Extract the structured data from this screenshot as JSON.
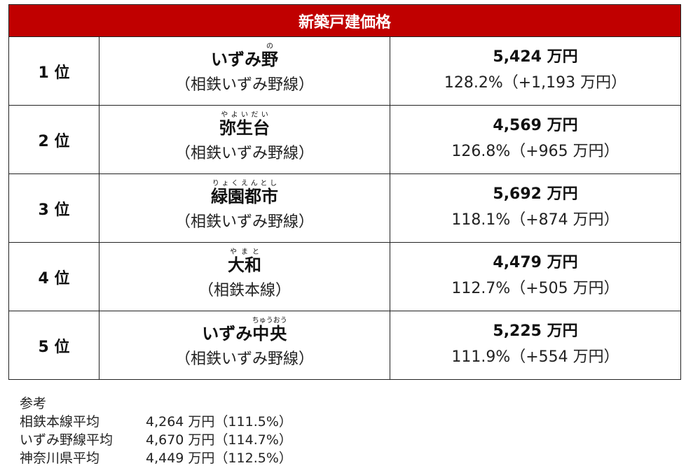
{
  "header_color": "#c00000",
  "title": "新築戸建価格",
  "rows": [
    {
      "rank": "1 位",
      "name_pre": "いずみ",
      "name_ruby_base": "野",
      "name_ruby": "の",
      "name_post": "",
      "line": "（相鉄いずみ野線）",
      "price": "5,424 万円",
      "change": "128.2%（+1,193 万円）"
    },
    {
      "rank": "2 位",
      "name_pre": "",
      "name_ruby_base": "弥生台",
      "name_ruby": "やよいだい",
      "name_post": "",
      "line": "（相鉄いずみ野線）",
      "price": "4,569 万円",
      "change": "126.8%（+965 万円）"
    },
    {
      "rank": "3 位",
      "name_pre": "",
      "name_ruby_base": "緑園都市",
      "name_ruby": "りょくえんとし",
      "name_post": "",
      "line": "（相鉄いずみ野線）",
      "price": "5,692 万円",
      "change": "118.1%（+874 万円）"
    },
    {
      "rank": "4 位",
      "name_pre": "",
      "name_ruby_base": "大和",
      "name_ruby": "やまと",
      "name_post": "",
      "line": "（相鉄本線）",
      "price": "4,479 万円",
      "change": "112.7%（+505 万円）"
    },
    {
      "rank": "5 位",
      "name_pre": "いずみ",
      "name_ruby_base": "中央",
      "name_ruby": "ちゅうおう",
      "name_post": "",
      "line": "（相鉄いずみ野線）",
      "price": "5,225 万円",
      "change": "111.9%（+554 万円）"
    }
  ],
  "reference": {
    "heading": "参考",
    "items": [
      {
        "label": "相鉄本線平均",
        "value": "4,264 万円（111.5%）"
      },
      {
        "label": "いずみ野線平均",
        "value": "4,670 万円（114.7%）"
      },
      {
        "label": "神奈川県平均",
        "value": "4,449 万円（112.5%）"
      }
    ]
  }
}
